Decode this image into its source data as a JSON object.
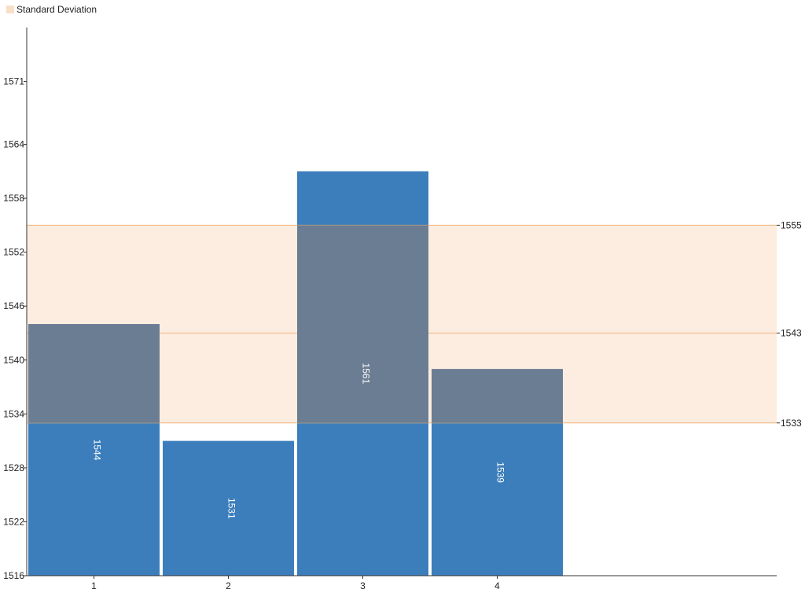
{
  "legend": {
    "label": "Standard Deviation"
  },
  "chart_data": {
    "type": "bar",
    "categories": [
      "1",
      "2",
      "3",
      "4"
    ],
    "values": [
      1544,
      1531,
      1561,
      1539
    ],
    "ylim": [
      1516,
      1577
    ],
    "y_ticks": [
      1516,
      1522,
      1528,
      1534,
      1540,
      1546,
      1552,
      1558,
      1564,
      1571
    ],
    "y_tick_labels": [
      "1516",
      "1522",
      "1528",
      "1534",
      "1540",
      "1546",
      "1552",
      "1558",
      "1564",
      "1571"
    ],
    "mean": 1543,
    "std_band": [
      1533,
      1555
    ],
    "right_labels": [
      "1555",
      "1543",
      "1533"
    ],
    "colors": {
      "bar": "#3c7ebb",
      "band": "#f9dfc7",
      "band_line": "#f0b27a",
      "overlap": "#6a7d92",
      "axis": "#333333"
    }
  }
}
